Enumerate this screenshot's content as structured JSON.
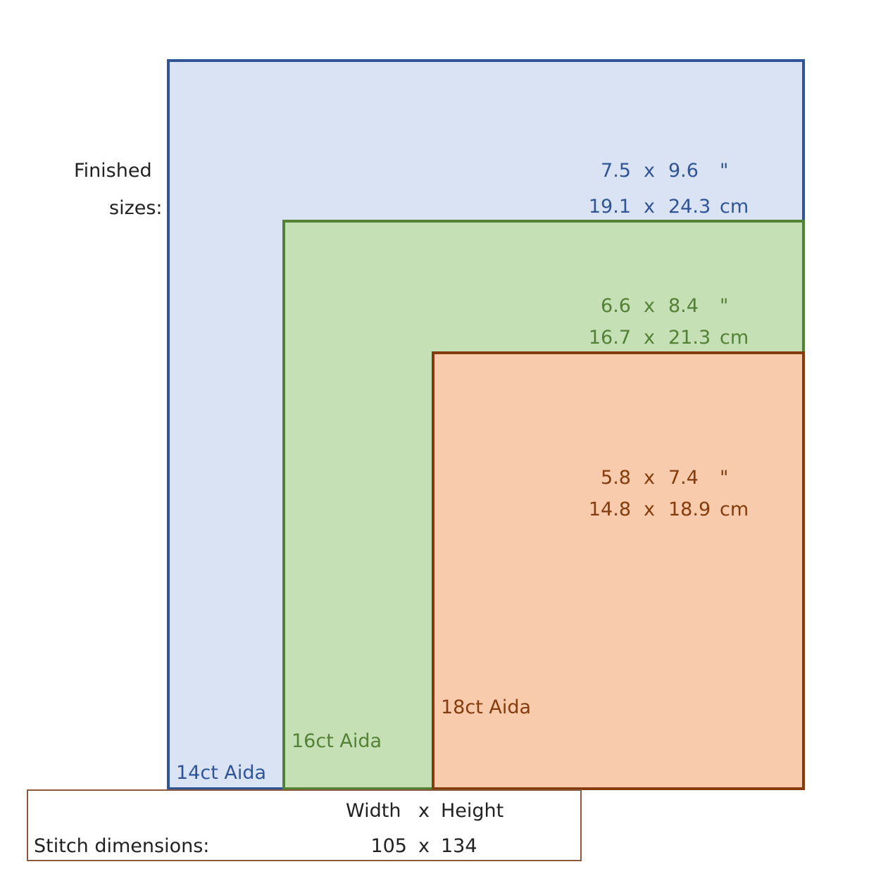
{
  "finished_label": {
    "line1": "Finished",
    "line2": "sizes:"
  },
  "sizes": [
    {
      "fabric": "14ct Aida",
      "w_in": "7.5",
      "h_in": "9.6",
      "unit_in": "\"",
      "w_cm": "19.1",
      "h_cm": "24.3",
      "unit_cm": "cm",
      "x": "x",
      "color": "#2f5597",
      "fill": "#dae3f3"
    },
    {
      "fabric": "16ct Aida",
      "w_in": "6.6",
      "h_in": "8.4",
      "unit_in": "\"",
      "w_cm": "16.7",
      "h_cm": "21.3",
      "unit_cm": "cm",
      "x": "x",
      "color": "#538135",
      "fill": "#c5e0b4"
    },
    {
      "fabric": "18ct Aida",
      "w_in": "5.8",
      "h_in": "7.4",
      "unit_in": "\"",
      "w_cm": "14.8",
      "h_cm": "18.9",
      "unit_cm": "cm",
      "x": "x",
      "color": "#843c0c",
      "fill": "#f8cbad"
    }
  ],
  "stitch": {
    "header_width": "Width",
    "header_x": "x",
    "header_height": "Height",
    "label": "Stitch dimensions:",
    "width": "105",
    "x": "x",
    "height": "134"
  }
}
